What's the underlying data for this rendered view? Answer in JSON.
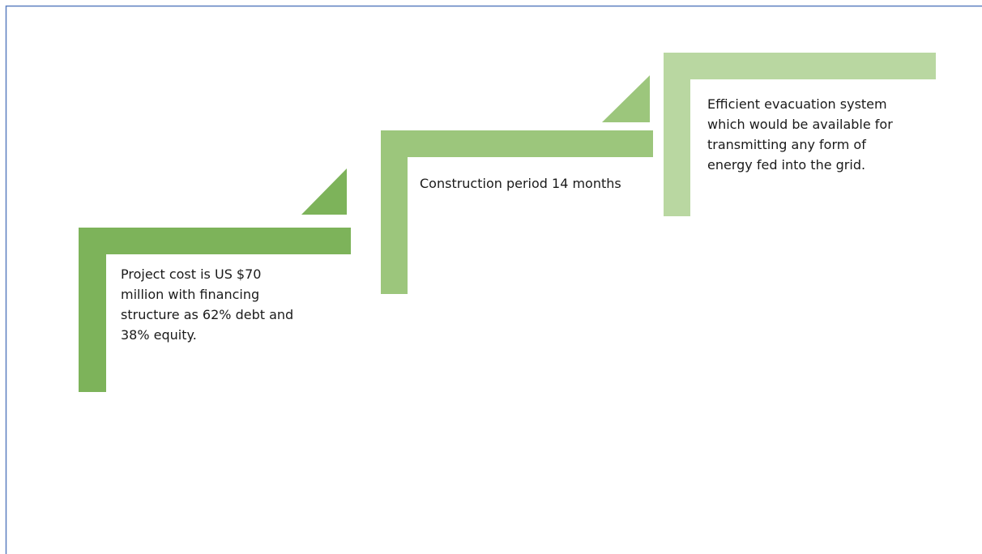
{
  "steps": [
    {
      "lines": [
        "Project cost is US $70",
        "million with financing",
        "structure as 62% debt and",
        "38% equity."
      ]
    },
    {
      "lines": [
        "Construction period 14 months"
      ]
    },
    {
      "lines": [
        "Efficient evacuation system",
        "which would be available for",
        "transmitting any form of",
        "energy fed into the grid."
      ]
    }
  ]
}
